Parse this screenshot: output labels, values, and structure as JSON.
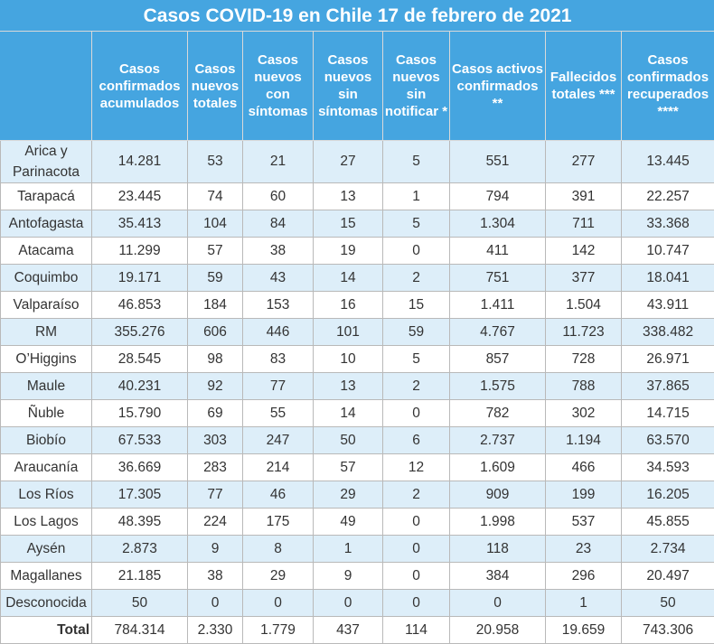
{
  "title": "Casos COVID-19 en Chile 17 de febrero de 2021",
  "headers": [
    "Casos confirmados acumulados",
    "Casos nuevos totales",
    "Casos nuevos con síntomas",
    "Casos nuevos sin síntomas",
    "Casos nuevos sin notificar *",
    "Casos activos confirmados **",
    "Fallecidos totales ***",
    "Casos confirmados recuperados ****"
  ],
  "rows": [
    {
      "region": "Arica y Parinacota",
      "values": [
        "14.281",
        "53",
        "21",
        "27",
        "5",
        "551",
        "277",
        "13.445"
      ]
    },
    {
      "region": "Tarapacá",
      "values": [
        "23.445",
        "74",
        "60",
        "13",
        "1",
        "794",
        "391",
        "22.257"
      ]
    },
    {
      "region": "Antofagasta",
      "values": [
        "35.413",
        "104",
        "84",
        "15",
        "5",
        "1.304",
        "711",
        "33.368"
      ]
    },
    {
      "region": "Atacama",
      "values": [
        "11.299",
        "57",
        "38",
        "19",
        "0",
        "411",
        "142",
        "10.747"
      ]
    },
    {
      "region": "Coquimbo",
      "values": [
        "19.171",
        "59",
        "43",
        "14",
        "2",
        "751",
        "377",
        "18.041"
      ]
    },
    {
      "region": "Valparaíso",
      "values": [
        "46.853",
        "184",
        "153",
        "16",
        "15",
        "1.411",
        "1.504",
        "43.911"
      ]
    },
    {
      "region": "RM",
      "values": [
        "355.276",
        "606",
        "446",
        "101",
        "59",
        "4.767",
        "11.723",
        "338.482"
      ]
    },
    {
      "region": "O’Higgins",
      "values": [
        "28.545",
        "98",
        "83",
        "10",
        "5",
        "857",
        "728",
        "26.971"
      ]
    },
    {
      "region": "Maule",
      "values": [
        "40.231",
        "92",
        "77",
        "13",
        "2",
        "1.575",
        "788",
        "37.865"
      ]
    },
    {
      "region": "Ñuble",
      "values": [
        "15.790",
        "69",
        "55",
        "14",
        "0",
        "782",
        "302",
        "14.715"
      ]
    },
    {
      "region": "Biobío",
      "values": [
        "67.533",
        "303",
        "247",
        "50",
        "6",
        "2.737",
        "1.194",
        "63.570"
      ]
    },
    {
      "region": "Araucanía",
      "values": [
        "36.669",
        "283",
        "214",
        "57",
        "12",
        "1.609",
        "466",
        "34.593"
      ]
    },
    {
      "region": "Los Ríos",
      "values": [
        "17.305",
        "77",
        "46",
        "29",
        "2",
        "909",
        "199",
        "16.205"
      ]
    },
    {
      "region": "Los Lagos",
      "values": [
        "48.395",
        "224",
        "175",
        "49",
        "0",
        "1.998",
        "537",
        "45.855"
      ]
    },
    {
      "region": "Aysén",
      "values": [
        "2.873",
        "9",
        "8",
        "1",
        "0",
        "118",
        "23",
        "2.734"
      ]
    },
    {
      "region": "Magallanes",
      "values": [
        "21.185",
        "38",
        "29",
        "9",
        "0",
        "384",
        "296",
        "20.497"
      ]
    },
    {
      "region": "Desconocida",
      "values": [
        "50",
        "0",
        "0",
        "0",
        "0",
        "0",
        "1",
        "50"
      ]
    }
  ],
  "total": {
    "label": "Total",
    "values": [
      "784.314",
      "2.330",
      "1.779",
      "437",
      "114",
      "20.958",
      "19.659",
      "743.306"
    ]
  }
}
